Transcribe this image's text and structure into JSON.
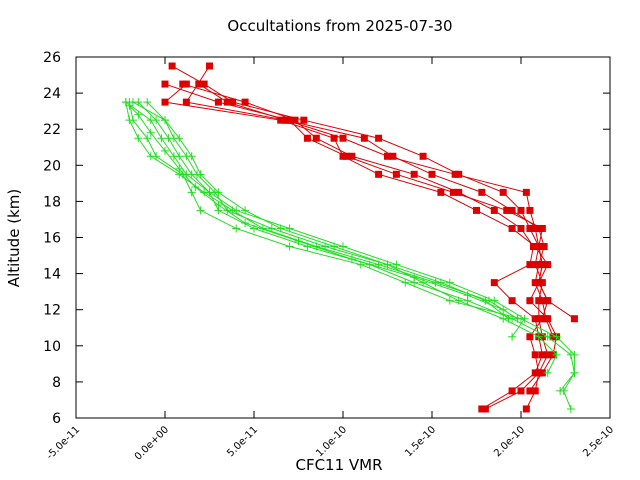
{
  "chart_data": {
    "type": "line",
    "title": "Occultations from 2025-07-30",
    "xlabel": "CFC11 VMR",
    "ylabel": "Altitude (km)",
    "xlim": [
      -5e-11,
      2.5e-10
    ],
    "ylim": [
      6,
      26
    ],
    "x_ticks": [
      {
        "value": -5e-11,
        "label": "-5.0e-11"
      },
      {
        "value": 0,
        "label": "0.0e+00"
      },
      {
        "value": 5e-11,
        "label": "5.0e-11"
      },
      {
        "value": 1e-10,
        "label": "1.0e-10"
      },
      {
        "value": 1.5e-10,
        "label": "1.5e-10"
      },
      {
        "value": 2e-10,
        "label": "2.0e-10"
      },
      {
        "value": 2.5e-10,
        "label": "2.5e-10"
      }
    ],
    "y_ticks": [
      {
        "value": 6,
        "label": "6"
      },
      {
        "value": 8,
        "label": "8"
      },
      {
        "value": 10,
        "label": "10"
      },
      {
        "value": 12,
        "label": "12"
      },
      {
        "value": 14,
        "label": "14"
      },
      {
        "value": 16,
        "label": "16"
      },
      {
        "value": 18,
        "label": "18"
      },
      {
        "value": 20,
        "label": "20"
      },
      {
        "value": 22,
        "label": "22"
      },
      {
        "value": 24,
        "label": "24"
      }
    ],
    "y_ticks_extra": [
      {
        "value": 26,
        "label": "26"
      }
    ],
    "grid": false,
    "legend": "none",
    "colors": {
      "red_series": "#dd0000",
      "green_series": "#22dd22",
      "axes": "#000000"
    },
    "series": [
      {
        "color": "#dd0000",
        "marker": "square",
        "points": [
          [
            2.3e-10,
            11.5
          ],
          [
            2.15e-10,
            12.5
          ],
          [
            2.1e-10,
            13.5
          ],
          [
            2.12e-10,
            14.5
          ],
          [
            2.1e-10,
            15.5
          ],
          [
            2.05e-10,
            16.5
          ],
          [
            2e-10,
            17.5
          ],
          [
            1.9e-10,
            18.5
          ],
          [
            1.65e-10,
            19.5
          ],
          [
            1.45e-10,
            20.5
          ],
          [
            1.2e-10,
            21.5
          ],
          [
            7.8e-11,
            22.5
          ],
          [
            3.8e-11,
            23.5
          ],
          [
            2.2e-11,
            24.5
          ],
          [
            4e-12,
            25.5
          ]
        ]
      },
      {
        "color": "#dd0000",
        "marker": "square",
        "points": [
          [
            2.18e-10,
            10.5
          ],
          [
            2.14e-10,
            11.5
          ],
          [
            2.12e-10,
            12.5
          ],
          [
            2.08e-10,
            13.5
          ],
          [
            2.1e-10,
            14.5
          ],
          [
            2.13e-10,
            15.5
          ],
          [
            2.1e-10,
            16.5
          ],
          [
            1.95e-10,
            17.5
          ],
          [
            1.78e-10,
            18.5
          ],
          [
            1.5e-10,
            19.5
          ],
          [
            1.28e-10,
            20.5
          ],
          [
            1.12e-10,
            21.5
          ],
          [
            6.8e-11,
            22.5
          ],
          [
            3.5e-11,
            23.5
          ],
          [
            1.9e-11,
            24.5
          ]
        ]
      },
      {
        "color": "#dd0000",
        "marker": "square",
        "points": [
          [
            1.78e-10,
            6.5
          ],
          [
            1.95e-10,
            7.5
          ],
          [
            2.08e-10,
            8.5
          ],
          [
            2.12e-10,
            9.5
          ],
          [
            2.1e-10,
            10.5
          ],
          [
            2.08e-10,
            11.5
          ],
          [
            1.95e-10,
            12.5
          ],
          [
            1.85e-10,
            13.5
          ],
          [
            2.05e-10,
            14.5
          ],
          [
            2.07e-10,
            15.5
          ],
          [
            2e-10,
            16.5
          ],
          [
            1.85e-10,
            17.5
          ],
          [
            1.65e-10,
            18.5
          ],
          [
            1.4e-10,
            19.5
          ],
          [
            1.05e-10,
            20.5
          ],
          [
            8.5e-11,
            21.5
          ],
          [
            7.3e-11,
            22.5
          ],
          [
            4.5e-11,
            23.5
          ],
          [
            1e-11,
            24.5
          ]
        ]
      },
      {
        "color": "#dd0000",
        "marker": "square",
        "points": [
          [
            1.8e-10,
            6.5
          ],
          [
            2e-10,
            7.5
          ],
          [
            2.1e-10,
            8.5
          ],
          [
            2.15e-10,
            9.5
          ],
          [
            2.12e-10,
            10.5
          ],
          [
            2.1e-10,
            11.5
          ],
          [
            2.1e-10,
            12.5
          ],
          [
            2.12e-10,
            13.5
          ],
          [
            2.08e-10,
            14.5
          ],
          [
            2.1e-10,
            15.5
          ],
          [
            2.12e-10,
            16.5
          ],
          [
            1.92e-10,
            17.5
          ],
          [
            1.62e-10,
            18.5
          ],
          [
            1.3e-10,
            19.5
          ],
          [
            1.02e-10,
            20.5
          ],
          [
            8e-11,
            21.5
          ],
          [
            7e-11,
            22.5
          ],
          [
            3e-11,
            23.5
          ],
          [
            0,
            24.5
          ]
        ]
      },
      {
        "color": "#dd0000",
        "marker": "square",
        "points": [
          [
            2.05e-10,
            7.5
          ],
          [
            2.12e-10,
            8.5
          ],
          [
            2.18e-10,
            9.5
          ],
          [
            2.2e-10,
            10.5
          ],
          [
            2.15e-10,
            11.5
          ],
          [
            2.05e-10,
            12.5
          ],
          [
            2.1e-10,
            13.5
          ],
          [
            2.15e-10,
            14.5
          ],
          [
            2.08e-10,
            15.5
          ],
          [
            1.95e-10,
            16.5
          ],
          [
            1.75e-10,
            17.5
          ],
          [
            1.55e-10,
            18.5
          ],
          [
            1.2e-10,
            19.5
          ],
          [
            1e-10,
            20.5
          ],
          [
            9.5e-11,
            21.5
          ],
          [
            6.5e-11,
            22.5
          ],
          [
            0,
            23.5
          ],
          [
            1.2e-11,
            24.5
          ]
        ]
      },
      {
        "color": "#dd0000",
        "marker": "square",
        "points": [
          [
            2.03e-10,
            6.5
          ],
          [
            2.08e-10,
            7.5
          ],
          [
            2.1e-10,
            8.5
          ],
          [
            2.08e-10,
            9.5
          ],
          [
            2.05e-10,
            10.5
          ],
          [
            2.12e-10,
            11.5
          ],
          [
            2.15e-10,
            12.5
          ],
          [
            2.1e-10,
            13.5
          ],
          [
            2.12e-10,
            14.5
          ],
          [
            2.1e-10,
            15.5
          ],
          [
            2.08e-10,
            16.5
          ],
          [
            2.05e-10,
            17.5
          ],
          [
            2.03e-10,
            18.5
          ],
          [
            1.63e-10,
            19.5
          ],
          [
            1.25e-10,
            20.5
          ],
          [
            1e-10,
            21.5
          ],
          [
            6.8e-11,
            22.5
          ],
          [
            1.2e-11,
            23.5
          ],
          [
            2.5e-11,
            25.5
          ]
        ]
      },
      {
        "color": "#22dd22",
        "marker": "plus",
        "points": [
          [
            2.28e-10,
            6.5
          ],
          [
            2.24e-10,
            7.5
          ],
          [
            2.3e-10,
            8.5
          ],
          [
            2.3e-10,
            9.5
          ],
          [
            2.2e-10,
            10.5
          ],
          [
            2e-10,
            11.5
          ],
          [
            1.6e-10,
            12.5
          ],
          [
            1.35e-10,
            13.5
          ],
          [
            1.1e-10,
            14.5
          ],
          [
            7e-11,
            15.5
          ],
          [
            4e-11,
            16.5
          ],
          [
            2e-11,
            17.5
          ],
          [
            1.5e-11,
            18.5
          ],
          [
            1e-11,
            19.5
          ],
          [
            -5e-12,
            20.5
          ],
          [
            -1e-11,
            21.5
          ],
          [
            -1.8e-11,
            22.5
          ],
          [
            -2e-11,
            23.5
          ]
        ]
      },
      {
        "color": "#22dd22",
        "marker": "plus",
        "points": [
          [
            2.22e-10,
            7.5
          ],
          [
            2.3e-10,
            8.5
          ],
          [
            2.28e-10,
            9.5
          ],
          [
            2.15e-10,
            10.5
          ],
          [
            1.95e-10,
            11.5
          ],
          [
            1.7e-10,
            12.5
          ],
          [
            1.4e-10,
            13.5
          ],
          [
            1.15e-10,
            14.5
          ],
          [
            8e-11,
            15.5
          ],
          [
            5e-11,
            16.5
          ],
          [
            3e-11,
            17.5
          ],
          [
            2.5e-11,
            18.5
          ],
          [
            1.5e-11,
            19.5
          ],
          [
            8e-12,
            20.5
          ],
          [
            2e-12,
            21.5
          ],
          [
            -5e-12,
            22.5
          ],
          [
            -1.5e-11,
            23.5
          ]
        ]
      },
      {
        "color": "#22dd22",
        "marker": "plus",
        "points": [
          [
            2.15e-10,
            8.5
          ],
          [
            2.2e-10,
            9.5
          ],
          [
            2.1e-10,
            10.5
          ],
          [
            1.9e-10,
            11.5
          ],
          [
            1.65e-10,
            12.5
          ],
          [
            1.45e-10,
            13.5
          ],
          [
            1.25e-10,
            14.5
          ],
          [
            9e-11,
            15.5
          ],
          [
            6e-11,
            16.5
          ],
          [
            3.5e-11,
            17.5
          ],
          [
            2.8e-11,
            18.5
          ],
          [
            1.8e-11,
            19.5
          ],
          [
            1.2e-11,
            20.5
          ],
          [
            5e-12,
            21.5
          ],
          [
            0,
            22.5
          ],
          [
            -1e-11,
            23.5
          ]
        ]
      },
      {
        "color": "#22dd22",
        "marker": "plus",
        "points": [
          [
            1.95e-10,
            10.5
          ],
          [
            2.02e-10,
            11.5
          ],
          [
            1.85e-10,
            12.5
          ],
          [
            1.6e-10,
            13.5
          ],
          [
            1.3e-10,
            14.5
          ],
          [
            1e-10,
            15.5
          ],
          [
            7e-11,
            16.5
          ],
          [
            4e-11,
            17.5
          ],
          [
            2.5e-11,
            18.5
          ],
          [
            1.2e-11,
            19.5
          ],
          [
            5e-12,
            20.5
          ],
          [
            -2e-12,
            21.5
          ],
          [
            -8e-12,
            22.5
          ],
          [
            -2.2e-11,
            23.5
          ]
        ]
      },
      {
        "color": "#22dd22",
        "marker": "plus",
        "points": [
          [
            1.93e-10,
            11.5
          ],
          [
            1.8e-10,
            12.5
          ],
          [
            1.55e-10,
            13.5
          ],
          [
            1.25e-10,
            14.5
          ],
          [
            9.5e-11,
            15.5
          ],
          [
            6.5e-11,
            16.5
          ],
          [
            4.5e-11,
            17.5
          ],
          [
            3e-11,
            18.5
          ],
          [
            2e-11,
            19.5
          ],
          [
            1.5e-11,
            20.5
          ],
          [
            8e-12,
            21.5
          ],
          [
            0,
            22.5
          ],
          [
            -1.8e-11,
            23.5
          ]
        ]
      },
      {
        "color": "#22dd22",
        "marker": "plus",
        "points": [
          [
            1.98e-10,
            11.5
          ],
          [
            1.82e-10,
            12.5
          ],
          [
            1.52e-10,
            13.5
          ],
          [
            1.2e-10,
            14.5
          ],
          [
            8.5e-11,
            15.5
          ],
          [
            5.5e-11,
            16.5
          ],
          [
            3.8e-11,
            17.5
          ],
          [
            2.2e-11,
            18.5
          ],
          [
            8e-12,
            19.5
          ],
          [
            -8e-12,
            20.5
          ],
          [
            -1.5e-11,
            21.5
          ],
          [
            -2e-11,
            22.5
          ],
          [
            -2.2e-11,
            23.5
          ]
        ]
      },
      {
        "color": "#22dd22",
        "marker": "plus",
        "points": [
          [
            1.9e-10,
            12.0
          ],
          [
            1.7e-10,
            12.8
          ],
          [
            1.4e-10,
            13.8
          ],
          [
            1.05e-10,
            14.8
          ],
          [
            7.5e-11,
            15.8
          ],
          [
            4.5e-11,
            16.8
          ],
          [
            3e-11,
            17.8
          ],
          [
            1.7e-11,
            18.8
          ],
          [
            8e-12,
            19.8
          ],
          [
            0,
            20.8
          ],
          [
            -8e-12,
            21.8
          ],
          [
            -1.5e-11,
            22.8
          ],
          [
            -2e-11,
            23.3
          ]
        ]
      }
    ]
  }
}
